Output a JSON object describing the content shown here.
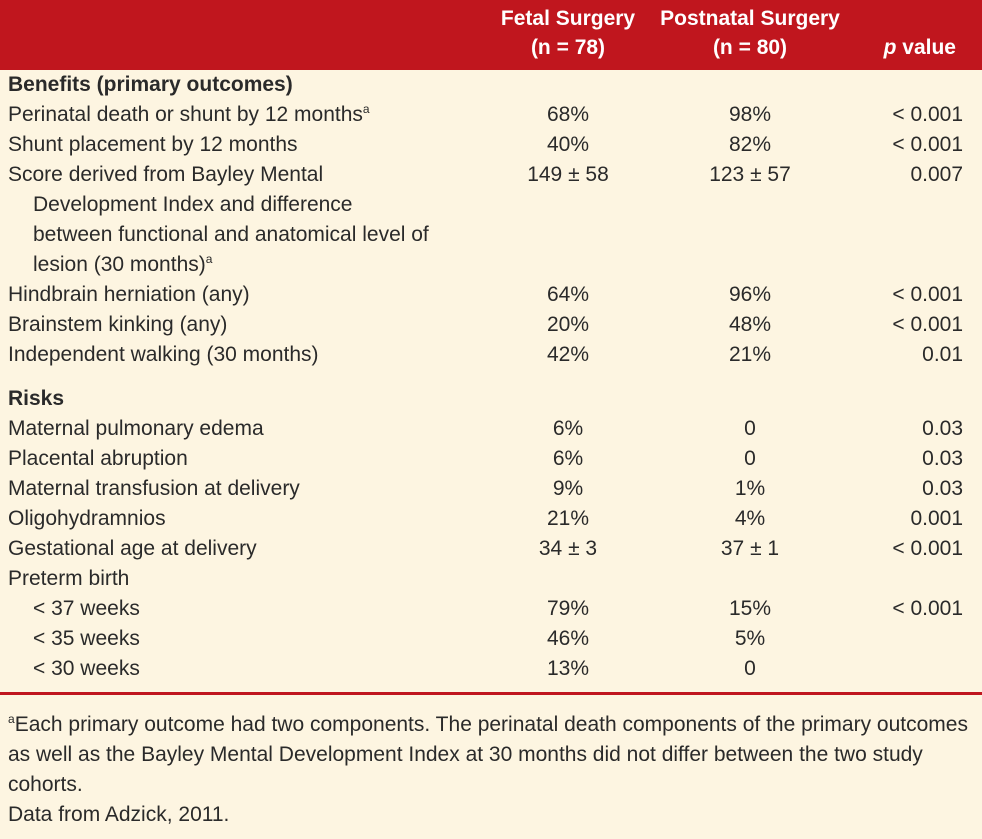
{
  "header": {
    "fetal": [
      "Fetal Surgery",
      "(n = 78)"
    ],
    "postnatal": [
      "Postnatal Surgery",
      "(n = 80)"
    ],
    "p_italic": "p",
    "p_rest": " value"
  },
  "benefits": {
    "title": "Benefits (primary outcomes)",
    "rows": [
      {
        "label": "Perinatal death or shunt by 12 months",
        "sup": "a",
        "fetal": "68%",
        "post": "98%",
        "p": "< 0.001"
      },
      {
        "label": "Shunt placement by 12 months",
        "fetal": "40%",
        "post": "82%",
        "p": "< 0.001"
      },
      {
        "label": "Score derived from Bayley Mental Development Index and difference between functional and anatomical level of lesion (30 months)",
        "sup": "a",
        "fetal": "149 ± 58",
        "post": "123 ± 57",
        "p": "0.007"
      },
      {
        "label": "Hindbrain herniation (any)",
        "fetal": "64%",
        "post": "96%",
        "p": "< 0.001"
      },
      {
        "label": "Brainstem kinking (any)",
        "fetal": "20%",
        "post": "48%",
        "p": "< 0.001"
      },
      {
        "label": "Independent walking (30 months)",
        "fetal": "42%",
        "post": "21%",
        "p": "0.01"
      }
    ]
  },
  "risks": {
    "title": "Risks",
    "rows": [
      {
        "label": "Maternal pulmonary edema",
        "fetal": "6%",
        "post": "0",
        "p": "0.03"
      },
      {
        "label": "Placental abruption",
        "fetal": "6%",
        "post": "0",
        "p": "0.03"
      },
      {
        "label": "Maternal transfusion at delivery",
        "fetal": "9%",
        "post": "1%",
        "p": "0.03"
      },
      {
        "label": "Oligohydramnios",
        "fetal": "21%",
        "post": "4%",
        "p": "0.001"
      },
      {
        "label": "Gestational age at delivery",
        "fetal": "34 ± 3",
        "post": "37 ± 1",
        "p": "< 0.001"
      },
      {
        "label": "Preterm birth"
      },
      {
        "label": "< 37 weeks",
        "fetal": "79%",
        "post": "15%",
        "p": "< 0.001"
      },
      {
        "label": "< 35 weeks",
        "fetal": "46%",
        "post": "5%"
      },
      {
        "label": "< 30 weeks",
        "fetal": "13%",
        "post": "0"
      }
    ]
  },
  "footnote": {
    "sup": "a",
    "text": "Each primary outcome had two components. The perinatal death components of the primary outcomes as well as the Bayley Mental Development Index at 30 months did not differ between the two study cohorts.",
    "source": "Data from Adzick, 2011."
  },
  "colors": {
    "header": "#c0161e",
    "background": "#fdf5e1"
  }
}
